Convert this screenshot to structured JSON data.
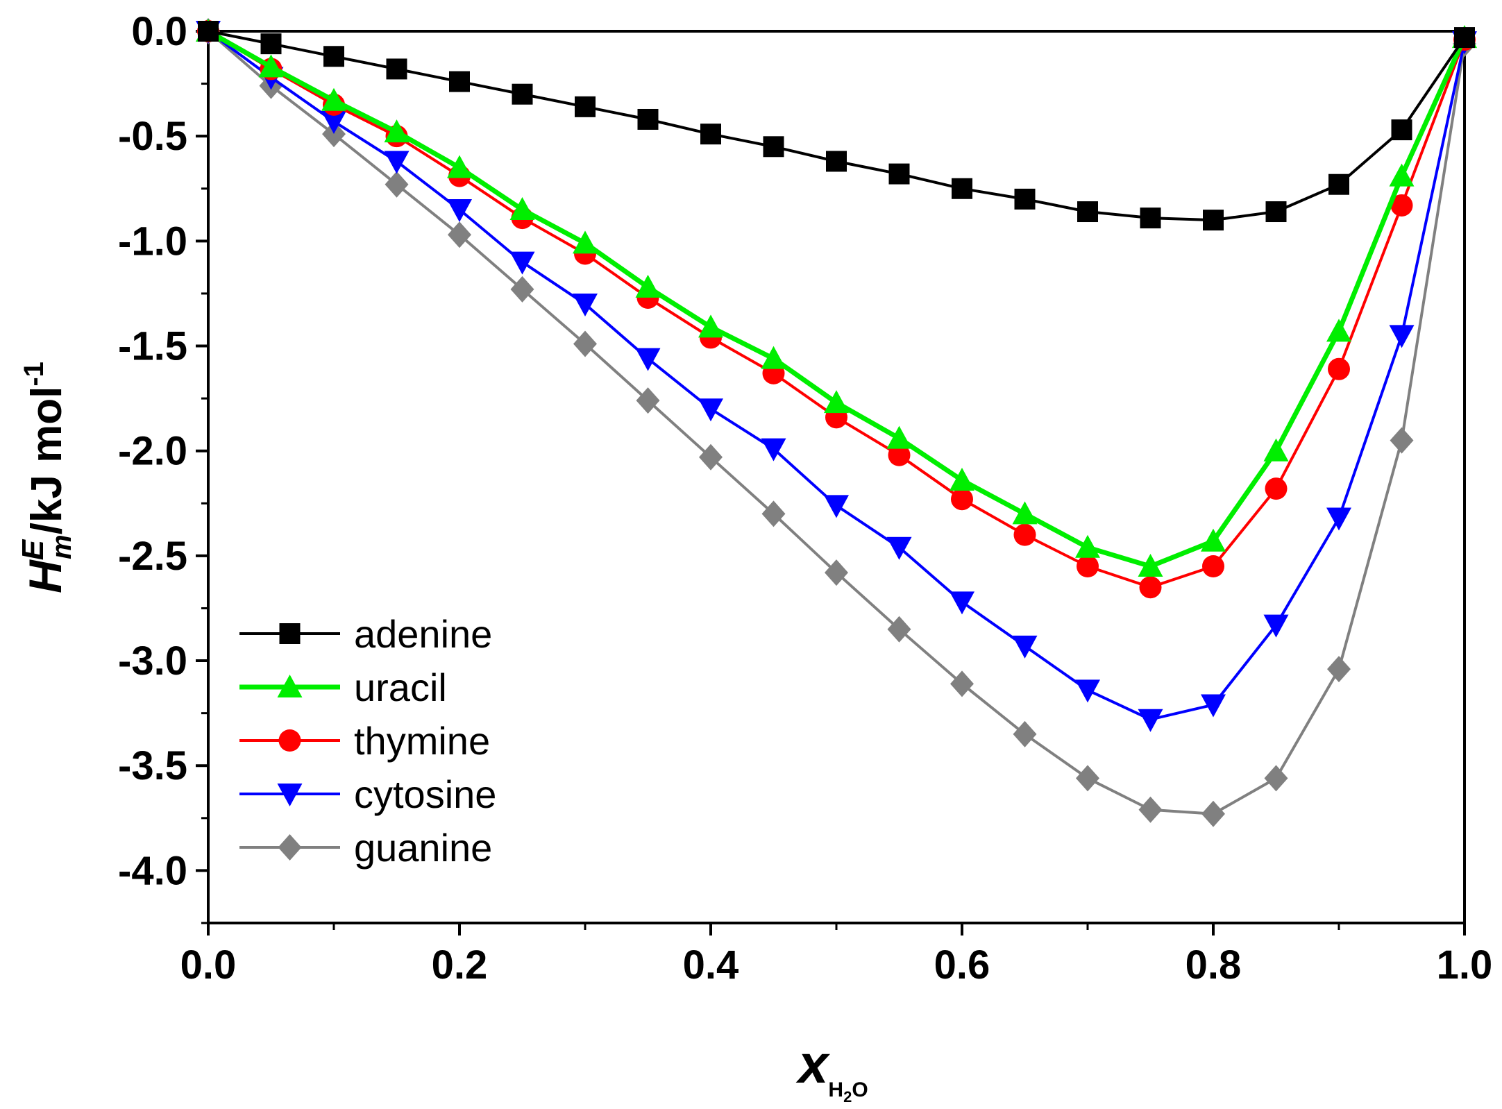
{
  "chart_data": {
    "type": "line",
    "title": "",
    "xlabel": {
      "main": "x",
      "sub1": "H",
      "sub2": "2",
      "sub3": "O"
    },
    "ylabel": {
      "main": "H",
      "sup": "E",
      "sub": "m",
      "rest": "/kJ mol",
      "unit_exp": "-1"
    },
    "xlim": [
      0,
      1
    ],
    "ylim": [
      -4.25,
      0
    ],
    "x_ticks": [
      0.0,
      0.2,
      0.4,
      0.6,
      0.8,
      1.0
    ],
    "x_tick_labels": [
      "0.0",
      "0.2",
      "0.4",
      "0.6",
      "0.8",
      "1.0"
    ],
    "y_ticks": [
      0.0,
      -0.5,
      -1.0,
      -1.5,
      -2.0,
      -2.5,
      -3.0,
      -3.5,
      -4.0
    ],
    "y_tick_labels": [
      "0.0",
      "-0.5",
      "-1.0",
      "-1.5",
      "-2.0",
      "-2.5",
      "-3.0",
      "-3.5",
      "-4.0"
    ],
    "x": [
      0,
      0.05,
      0.1,
      0.15,
      0.2,
      0.25,
      0.3,
      0.35,
      0.4,
      0.45,
      0.5,
      0.55,
      0.6,
      0.65,
      0.7,
      0.75,
      0.8,
      0.85,
      0.9,
      0.95,
      1.0
    ],
    "legend_position": "lower-left",
    "series": [
      {
        "name": "adenine",
        "color": "#000000",
        "marker": "square",
        "values": [
          0,
          -0.06,
          -0.12,
          -0.18,
          -0.24,
          -0.3,
          -0.36,
          -0.42,
          -0.49,
          -0.55,
          -0.62,
          -0.68,
          -0.75,
          -0.8,
          -0.86,
          -0.89,
          -0.9,
          -0.86,
          -0.73,
          -0.47,
          -0.03
        ]
      },
      {
        "name": "uracil",
        "color": "#00ee00",
        "marker": "triangle-up",
        "values": [
          0,
          -0.17,
          -0.33,
          -0.48,
          -0.65,
          -0.85,
          -1.01,
          -1.22,
          -1.41,
          -1.56,
          -1.77,
          -1.94,
          -2.14,
          -2.3,
          -2.46,
          -2.55,
          -2.43,
          -2.0,
          -1.43,
          -0.69,
          -0.03
        ]
      },
      {
        "name": "thymine",
        "color": "#ff0000",
        "marker": "circle",
        "values": [
          0,
          -0.18,
          -0.35,
          -0.5,
          -0.69,
          -0.89,
          -1.06,
          -1.27,
          -1.46,
          -1.63,
          -1.84,
          -2.02,
          -2.23,
          -2.4,
          -2.55,
          -2.65,
          -2.55,
          -2.18,
          -1.61,
          -0.83,
          -0.04
        ]
      },
      {
        "name": "cytosine",
        "color": "#0000ff",
        "marker": "triangle-down",
        "values": [
          0,
          -0.22,
          -0.43,
          -0.62,
          -0.85,
          -1.1,
          -1.3,
          -1.56,
          -1.8,
          -1.99,
          -2.26,
          -2.46,
          -2.72,
          -2.93,
          -3.14,
          -3.28,
          -3.21,
          -2.83,
          -2.32,
          -1.45,
          -0.05
        ]
      },
      {
        "name": "guanine",
        "color": "#808080",
        "marker": "diamond",
        "values": [
          0,
          -0.26,
          -0.49,
          -0.73,
          -0.97,
          -1.23,
          -1.49,
          -1.76,
          -2.03,
          -2.3,
          -2.58,
          -2.85,
          -3.11,
          -3.35,
          -3.56,
          -3.71,
          -3.73,
          -3.56,
          -3.04,
          -1.95,
          -0.06
        ]
      }
    ]
  }
}
